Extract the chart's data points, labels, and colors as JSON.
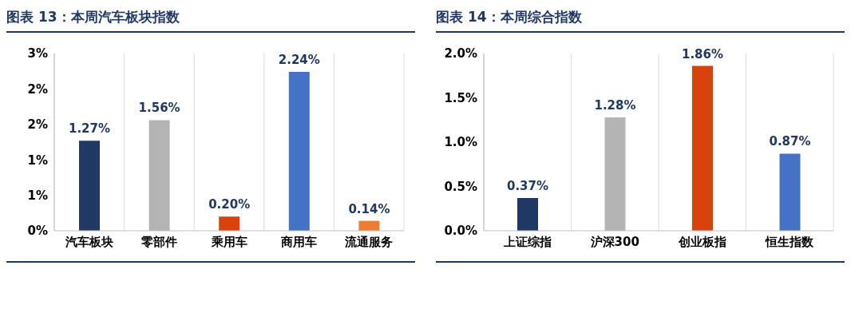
{
  "chart_data": [
    {
      "type": "bar",
      "title": "图表 13：本周汽车板块指数",
      "categories": [
        "汽车板块",
        "零部件",
        "乘用车",
        "商用车",
        "流通服务"
      ],
      "values": [
        1.27,
        1.56,
        0.2,
        2.24,
        0.14
      ],
      "colors": [
        "#1f3864",
        "#b4b4b4",
        "#d9430b",
        "#4472c4",
        "#ed7d31"
      ],
      "value_labels": [
        "1.27%",
        "1.56%",
        "0.20%",
        "2.24%",
        "0.14%"
      ],
      "ylim": [
        0,
        2.5
      ],
      "yticks": [
        {
          "value": 0,
          "label": "0%"
        },
        {
          "value": 0.5,
          "label": "1%"
        },
        {
          "value": 1,
          "label": "1%"
        },
        {
          "value": 1.5,
          "label": "2%"
        },
        {
          "value": 2,
          "label": "2%"
        },
        {
          "value": 2.5,
          "label": "3%"
        }
      ],
      "grid": "x",
      "legend": false
    },
    {
      "type": "bar",
      "title": "图表 14：本周综合指数",
      "categories": [
        "上证综指",
        "沪深300",
        "创业板指",
        "恒生指数"
      ],
      "values": [
        0.37,
        1.28,
        1.86,
        0.87
      ],
      "colors": [
        "#1f3864",
        "#b4b4b4",
        "#d9430b",
        "#4472c4"
      ],
      "value_labels": [
        "0.37%",
        "1.28%",
        "1.86%",
        "0.87%"
      ],
      "ylim": [
        0,
        2
      ],
      "yticks": [
        {
          "value": 0,
          "label": "0.0%"
        },
        {
          "value": 0.5,
          "label": "0.5%"
        },
        {
          "value": 1,
          "label": "1.0%"
        },
        {
          "value": 1.5,
          "label": "1.5%"
        },
        {
          "value": 2,
          "label": "2.0%"
        }
      ],
      "grid": "x",
      "legend": false
    }
  ]
}
